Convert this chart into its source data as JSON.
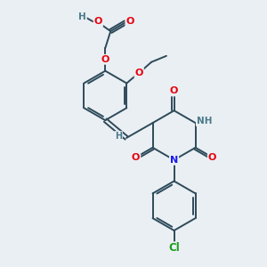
{
  "bg_color": "#eaeff3",
  "bond_color": "#2d4a5a",
  "atom_colors": {
    "O": "#e8000d",
    "N": "#1a1aee",
    "Cl": "#1a9e1a",
    "H": "#4a7a8a",
    "C": "#2d4a5a"
  },
  "figsize": [
    3.0,
    3.0
  ],
  "dpi": 100
}
